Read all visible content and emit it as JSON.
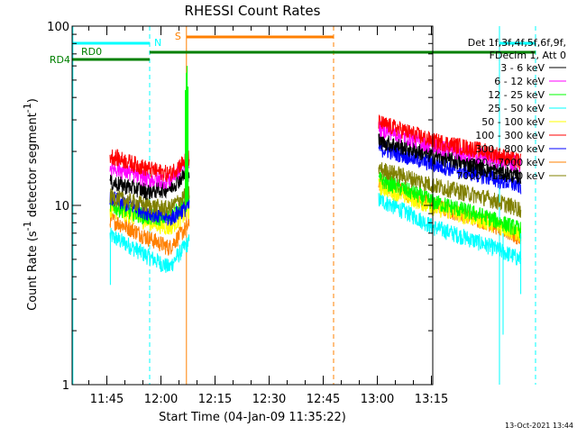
{
  "chart_data": {
    "type": "line",
    "title": "RHESSI Count Rates",
    "xlabel": "Start Time (04-Jan-09 11:35:22)",
    "ylabel_main": "Count Rate (s",
    "ylabel_sup": "-1",
    "ylabel_mid": " detector segment",
    "ylabel_sup2": "-1",
    "ylabel_end": ")",
    "y_scale": "log",
    "ylim": [
      1,
      100
    ],
    "y_ticks": [
      {
        "value": 1,
        "label": "1"
      },
      {
        "value": 10,
        "label": "10"
      },
      {
        "value": 100,
        "label": "100"
      }
    ],
    "xlim": [
      "11:35:22",
      "13:15:22"
    ],
    "x_ticks": [
      {
        "value": 45,
        "label": "11:45"
      },
      {
        "value": 60,
        "label": "12:00"
      },
      {
        "value": 75,
        "label": "12:15"
      },
      {
        "value": 90,
        "label": "12:30"
      },
      {
        "value": 105,
        "label": "12:45"
      },
      {
        "value": 120,
        "label": "13:00"
      },
      {
        "value": 135,
        "label": "13:15"
      }
    ],
    "legend_header": [
      "Det 1f,3f,4f,5f,6f,9f,",
      "FDecim 1, Att 0"
    ],
    "legend_position": "top-right",
    "series": [
      {
        "name": "3 - 6 keV",
        "color": "#000000",
        "seg1": [
          13.5,
          12.0,
          12.5,
          15.5
        ],
        "seg2": [
          23.0,
          19.0,
          16.0,
          14.5
        ]
      },
      {
        "name": "6 - 12 keV",
        "color": "#ff00ff",
        "seg1": [
          16.5,
          14.0,
          13.8,
          18.0
        ],
        "seg2": [
          27.0,
          21.5,
          18.5,
          17.0
        ]
      },
      {
        "name": "12 - 25 keV",
        "color": "#00ff00",
        "seg1": [
          10.0,
          8.6,
          8.6,
          10.5
        ],
        "seg2": [
          14.0,
          10.5,
          8.6,
          7.3
        ]
      },
      {
        "name": "25 - 50 keV",
        "color": "#00ffff",
        "seg1": [
          6.8,
          5.2,
          4.5,
          6.3
        ],
        "seg2": [
          10.8,
          7.6,
          6.0,
          5.0
        ]
      },
      {
        "name": "50 - 100 keV",
        "color": "#ffff00",
        "seg1": [
          9.6,
          8.1,
          7.5,
          9.3
        ],
        "seg2": [
          12.8,
          9.8,
          8.1,
          6.9
        ]
      },
      {
        "name": "100 - 300 keV",
        "color": "#ff0000",
        "seg1": [
          19.0,
          16.0,
          15.0,
          18.5
        ],
        "seg2": [
          29.0,
          23.0,
          20.0,
          17.5
        ]
      },
      {
        "name": "300 - 800 keV",
        "color": "#0000ff",
        "seg1": [
          11.0,
          9.2,
          8.4,
          10.0
        ],
        "seg2": [
          21.0,
          17.0,
          14.5,
          12.8
        ]
      },
      {
        "name": "800 - 7000 keV",
        "color": "#ff8000",
        "seg1": [
          8.4,
          6.6,
          5.8,
          7.8
        ],
        "seg2": [
          13.5,
          10.0,
          8.1,
          6.5
        ]
      },
      {
        "name": "7000 - 15000 keV",
        "color": "#808000",
        "seg1": [
          11.2,
          10.0,
          9.6,
          11.8
        ],
        "seg2": [
          16.0,
          13.0,
          11.0,
          9.5
        ]
      }
    ],
    "segment_times": {
      "seg1": [
        10.5,
        21.0,
        27.0,
        32.5
      ],
      "seg2": [
        85.0,
        100.0,
        115.0,
        124.5
      ]
    },
    "spike": {
      "time": 32.0,
      "values": [
        44,
        55,
        60,
        46
      ]
    },
    "state_bars": [
      {
        "label": "N",
        "color": "#00ffff",
        "ranges": [
          [
            0,
            21.5
          ],
          [
            118.5,
            128.5
          ]
        ],
        "level": 1
      },
      {
        "label": "S",
        "color": "#ff8000",
        "ranges": [
          [
            31.7,
            72.5
          ]
        ],
        "level": 0
      },
      {
        "label": "RD0",
        "color": "#008000",
        "ranges": [
          [
            21.5,
            128.5
          ]
        ],
        "level": 2
      },
      {
        "label": "RD4",
        "color": "#008000",
        "ranges": [
          [
            0,
            21.5
          ]
        ],
        "level": 3
      }
    ],
    "vlines": [
      {
        "time": 21.5,
        "color": "#00ffff",
        "style": "dashed"
      },
      {
        "time": 31.7,
        "color": "#ff8000",
        "style": "solid"
      },
      {
        "time": 72.5,
        "color": "#ff8000",
        "style": "dashed"
      },
      {
        "time": 118.5,
        "color": "#00ffff",
        "style": "solid"
      },
      {
        "time": 128.5,
        "color": "#00ffff",
        "style": "dashed"
      },
      {
        "time": 0.2,
        "color": "#00ffff",
        "style": "solid"
      }
    ],
    "timestamp": "13-Oct-2021 13:44"
  }
}
